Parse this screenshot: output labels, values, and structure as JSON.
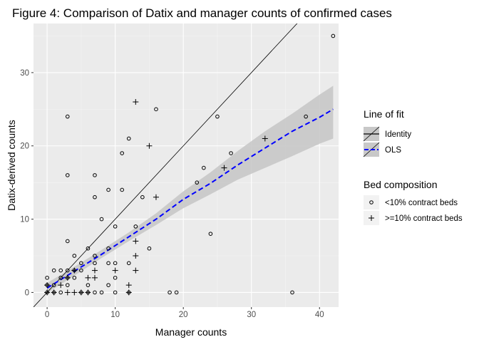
{
  "chart_data": {
    "type": "scatter",
    "title": "Figure 4: Comparison of Datix and manager counts of confirmed cases",
    "xlabel": "Manager counts",
    "ylabel": "Datix-derived counts",
    "xlim": [
      -2,
      42.8
    ],
    "ylim": [
      -2,
      36.7
    ],
    "x_ticks": [
      0,
      10,
      20,
      30,
      40
    ],
    "y_ticks": [
      0,
      10,
      20,
      30
    ],
    "grid": true,
    "colors": {
      "panel": "#ebebeb",
      "grid_major": "#ffffff",
      "grid_minor": "#f4f4f4",
      "identity": "#000000",
      "ols": "#0000ff",
      "ribbon": "#c8c8c8",
      "points": "#000000"
    },
    "lines": {
      "identity": {
        "name": "Identity",
        "slope": 1,
        "intercept": 0
      },
      "ols": {
        "name": "OLS",
        "x": [
          0,
          4,
          8,
          12,
          16,
          20,
          24,
          28,
          32,
          36,
          40,
          42
        ],
        "y": [
          0.6,
          2.9,
          5.2,
          7.6,
          10.0,
          12.7,
          14.9,
          17.4,
          19.7,
          22.0,
          23.9,
          25.0
        ],
        "lower": [
          -0.1,
          2.3,
          4.7,
          7.0,
          9.2,
          11.5,
          13.4,
          15.4,
          17.0,
          18.6,
          20.3,
          21.0
        ],
        "upper": [
          1.3,
          3.5,
          5.8,
          8.2,
          10.8,
          13.8,
          16.4,
          19.3,
          22.0,
          24.4,
          27.0,
          28.2
        ]
      }
    },
    "legend": {
      "placement": "right",
      "fit_title": "Line of fit",
      "fit_items": [
        "Identity",
        "OLS"
      ],
      "bed_title": "Bed composition",
      "bed_items": [
        "<10% contract beds",
        ">=10% contract beds"
      ]
    },
    "series": [
      {
        "name": "<10% contract beds",
        "marker": "circle",
        "points": [
          [
            0,
            0
          ],
          [
            0,
            1
          ],
          [
            0,
            2
          ],
          [
            1,
            0
          ],
          [
            1,
            1
          ],
          [
            1,
            3
          ],
          [
            2,
            0
          ],
          [
            2,
            2
          ],
          [
            2,
            3
          ],
          [
            3,
            1
          ],
          [
            3,
            2
          ],
          [
            3,
            3
          ],
          [
            3,
            7
          ],
          [
            3,
            16
          ],
          [
            3,
            24
          ],
          [
            4,
            2
          ],
          [
            4,
            3
          ],
          [
            4,
            5
          ],
          [
            5,
            0
          ],
          [
            5,
            3
          ],
          [
            5,
            4
          ],
          [
            6,
            0
          ],
          [
            6,
            1
          ],
          [
            6,
            6
          ],
          [
            7,
            0
          ],
          [
            7,
            4
          ],
          [
            7,
            5
          ],
          [
            7,
            13
          ],
          [
            7,
            16
          ],
          [
            8,
            0
          ],
          [
            8,
            10
          ],
          [
            9,
            1
          ],
          [
            9,
            4
          ],
          [
            9,
            6
          ],
          [
            9,
            14
          ],
          [
            10,
            0
          ],
          [
            10,
            2
          ],
          [
            10,
            4
          ],
          [
            10,
            9
          ],
          [
            11,
            14
          ],
          [
            11,
            19
          ],
          [
            12,
            0
          ],
          [
            12,
            4
          ],
          [
            12,
            21
          ],
          [
            13,
            9
          ],
          [
            14,
            13
          ],
          [
            15,
            6
          ],
          [
            16,
            25
          ],
          [
            18,
            0
          ],
          [
            19,
            0
          ],
          [
            22,
            15
          ],
          [
            23,
            17
          ],
          [
            24,
            8
          ],
          [
            25,
            24
          ],
          [
            27,
            19
          ],
          [
            36,
            0
          ],
          [
            38,
            24
          ],
          [
            42,
            35
          ]
        ]
      },
      {
        "name": ">=10% contract beds",
        "marker": "cross",
        "points": [
          [
            0,
            0
          ],
          [
            0,
            1
          ],
          [
            1,
            0
          ],
          [
            2,
            1
          ],
          [
            3,
            0
          ],
          [
            3,
            2
          ],
          [
            4,
            0
          ],
          [
            4,
            3
          ],
          [
            5,
            0
          ],
          [
            6,
            0
          ],
          [
            6,
            2
          ],
          [
            7,
            2
          ],
          [
            7,
            3
          ],
          [
            10,
            3
          ],
          [
            12,
            0
          ],
          [
            12,
            1
          ],
          [
            13,
            3
          ],
          [
            13,
            5
          ],
          [
            13,
            7
          ],
          [
            13,
            26
          ],
          [
            15,
            20
          ],
          [
            16,
            13
          ],
          [
            26,
            17
          ],
          [
            32,
            21
          ]
        ]
      }
    ]
  }
}
